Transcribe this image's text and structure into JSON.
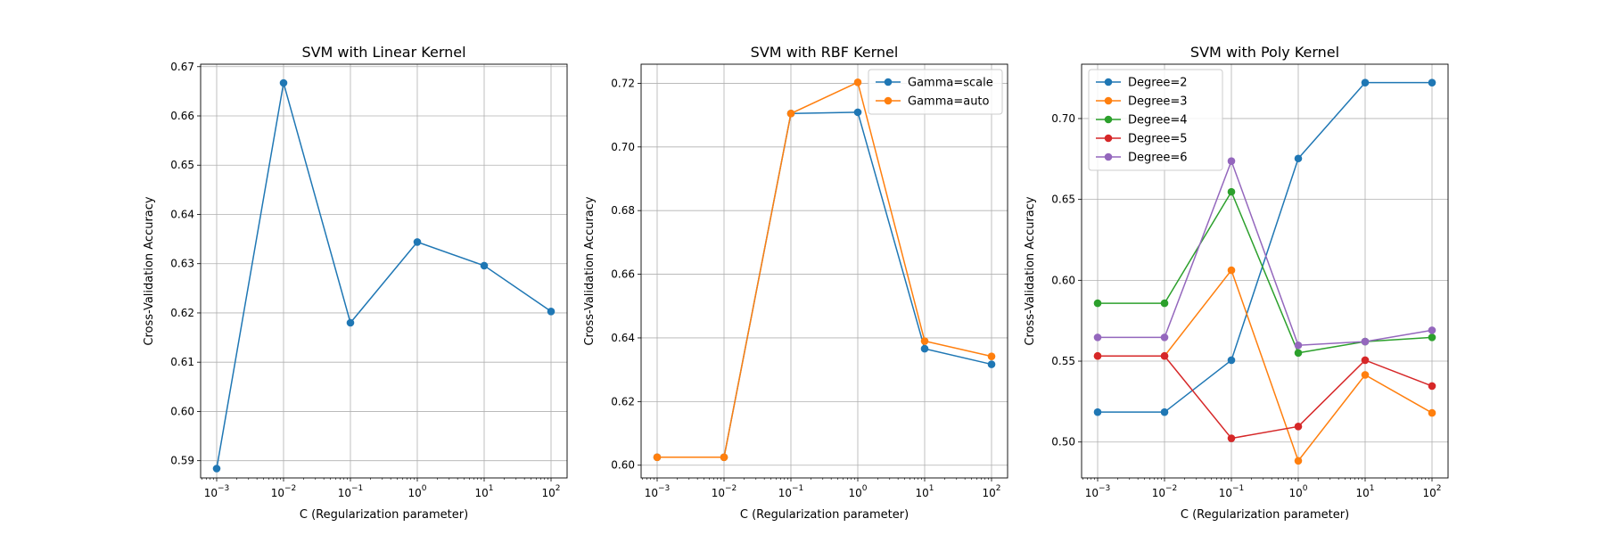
{
  "chart_data": [
    {
      "type": "line",
      "title": "SVM with Linear Kernel",
      "xlabel": "C (Regularization parameter)",
      "ylabel": "Cross-Validation Accuracy",
      "xscale": "log",
      "x": [
        0.001,
        0.01,
        0.1,
        1,
        10,
        100
      ],
      "xticks": [
        {
          "base": "10",
          "exp": "−3"
        },
        {
          "base": "10",
          "exp": "−2"
        },
        {
          "base": "10",
          "exp": "−1"
        },
        {
          "base": "10",
          "exp": "0"
        },
        {
          "base": "10",
          "exp": "1"
        },
        {
          "base": "10",
          "exp": "2"
        }
      ],
      "ylim": [
        0.5865,
        0.6705
      ],
      "yticks": [
        "0.59",
        "0.60",
        "0.61",
        "0.62",
        "0.63",
        "0.64",
        "0.65",
        "0.66",
        "0.67"
      ],
      "grid": true,
      "legend": null,
      "series": [
        {
          "color": "#1f77b4",
          "values": [
            0.5884,
            0.6667,
            0.618,
            0.6344,
            0.6296,
            0.6203
          ]
        }
      ]
    },
    {
      "type": "line",
      "title": "SVM with RBF Kernel",
      "xlabel": "C (Regularization parameter)",
      "ylabel": "Cross-Validation Accuracy",
      "xscale": "log",
      "x": [
        0.001,
        0.01,
        0.1,
        1,
        10,
        100
      ],
      "xticks": [
        {
          "base": "10",
          "exp": "−3"
        },
        {
          "base": "10",
          "exp": "−2"
        },
        {
          "base": "10",
          "exp": "−1"
        },
        {
          "base": "10",
          "exp": "0"
        },
        {
          "base": "10",
          "exp": "1"
        },
        {
          "base": "10",
          "exp": "2"
        }
      ],
      "ylim": [
        0.596,
        0.726
      ],
      "yticks": [
        "0.60",
        "0.62",
        "0.64",
        "0.66",
        "0.68",
        "0.70",
        "0.72"
      ],
      "grid": true,
      "legend": "top-right",
      "series": [
        {
          "name": "Gamma=scale",
          "color": "#1f77b4",
          "values": [
            0.6025,
            0.6025,
            0.7105,
            0.7109,
            0.6366,
            0.6317
          ]
        },
        {
          "name": "Gamma=auto",
          "color": "#ff7f0e",
          "values": [
            0.6025,
            0.6025,
            0.7105,
            0.7203,
            0.639,
            0.6342
          ]
        }
      ]
    },
    {
      "type": "line",
      "title": "SVM with Poly Kernel",
      "xlabel": "C (Regularization parameter)",
      "ylabel": "Cross-Validation Accuracy",
      "xscale": "log",
      "x": [
        0.001,
        0.01,
        0.1,
        1,
        10,
        100
      ],
      "xticks": [
        {
          "base": "10",
          "exp": "−3"
        },
        {
          "base": "10",
          "exp": "−2"
        },
        {
          "base": "10",
          "exp": "−1"
        },
        {
          "base": "10",
          "exp": "0"
        },
        {
          "base": "10",
          "exp": "1"
        },
        {
          "base": "10",
          "exp": "2"
        }
      ],
      "ylim": [
        0.4778,
        0.7336
      ],
      "yticks": [
        "0.50",
        "0.55",
        "0.60",
        "0.65",
        "0.70"
      ],
      "grid": true,
      "legend": "top-left",
      "series": [
        {
          "name": "Degree=2",
          "color": "#1f77b4",
          "values": [
            0.5185,
            0.5185,
            0.5506,
            0.6753,
            0.7222,
            0.7222
          ]
        },
        {
          "name": "Degree=3",
          "color": "#ff7f0e",
          "values": [
            0.5532,
            0.5532,
            0.6062,
            0.4884,
            0.5415,
            0.518
          ]
        },
        {
          "name": "Degree=4",
          "color": "#2ca02c",
          "values": [
            0.5858,
            0.5858,
            0.6547,
            0.5551,
            0.5621,
            0.5647
          ]
        },
        {
          "name": "Degree=5",
          "color": "#d62728",
          "values": [
            0.5532,
            0.5532,
            0.5023,
            0.5096,
            0.5506,
            0.5346
          ]
        },
        {
          "name": "Degree=6",
          "color": "#9467bd",
          "values": [
            0.5647,
            0.5647,
            0.6737,
            0.5598,
            0.5621,
            0.5691
          ]
        }
      ]
    }
  ]
}
